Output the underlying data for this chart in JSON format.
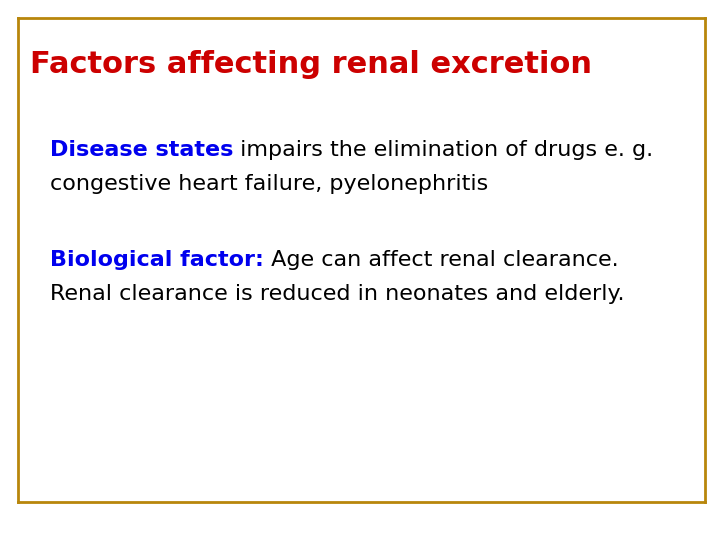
{
  "title": "Factors affecting renal excretion",
  "title_color": "#cc0000",
  "title_fontsize": 22,
  "border_color": "#b8860b",
  "border_linewidth": 2.0,
  "block1_label": "Disease states",
  "block1_label_color": "#0000ee",
  "block1_rest_line1": " impairs the elimination of drugs e. g.",
  "block1_line2": "congestive heart failure, pyelonephritis",
  "block1_rest_color": "#000000",
  "block1_fontsize": 16,
  "block2_label": "Biological factor:",
  "block2_label_color": "#0000ee",
  "block2_rest_line1": " Age can affect renal clearance.",
  "block2_line2": "Renal clearance is reduced in neonates and elderly.",
  "block2_rest_color": "#000000",
  "block2_fontsize": 16,
  "bg_color": "#ffffff",
  "fig_width": 7.2,
  "fig_height": 5.4,
  "dpi": 100
}
